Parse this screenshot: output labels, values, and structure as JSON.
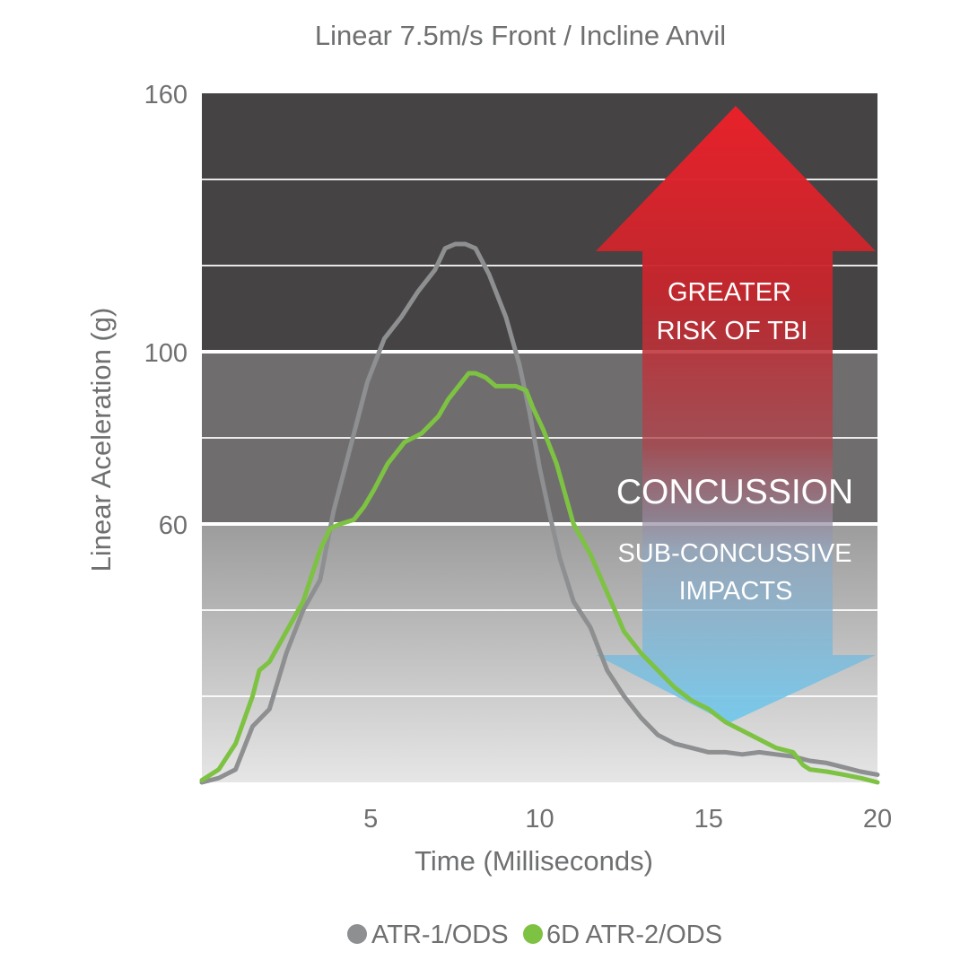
{
  "chart_data": {
    "type": "line",
    "title": "Linear 7.5m/s Front / Incline Anvil",
    "xlabel": "Time (Milliseconds)",
    "ylabel": "Linear Aceleration (g)",
    "xlim": [
      0,
      20
    ],
    "ylim": [
      0,
      160
    ],
    "x_ticks": [
      5,
      10,
      15,
      20
    ],
    "y_ticks": [
      60,
      100,
      160
    ],
    "grid_lines_y": [
      20,
      40,
      60,
      80,
      100,
      120,
      140
    ],
    "zones": [
      {
        "from": 100,
        "to": 160,
        "color": "#454344"
      },
      {
        "from": 60,
        "to": 100,
        "color": "#6f6d6e"
      },
      {
        "from": 0,
        "to": 60,
        "gradient": [
          "#9c9c9c",
          "#e6e6e6"
        ]
      }
    ],
    "annotations": {
      "risk_line1": "GREATER",
      "risk_line2": "RISK OF TBI",
      "concussion": "CONCUSSION",
      "sub_line1": "SUB-CONCUSSIVE",
      "sub_line2": "IMPACTS"
    },
    "legend_position": "bottom",
    "series": [
      {
        "name": "ATR-1/ODS",
        "color": "#8e8f91",
        "x": [
          0,
          0.5,
          1,
          1.5,
          2,
          2.5,
          3,
          3.5,
          3.9,
          4.4,
          4.9,
          5.4,
          5.9,
          6.4,
          6.9,
          7.2,
          7.5,
          7.8,
          8.1,
          8.5,
          9,
          9.4,
          9.7,
          10,
          10.3,
          10.6,
          11,
          11.5,
          12,
          12.5,
          13,
          13.5,
          14,
          14.5,
          15,
          15.5,
          16,
          16.5,
          17,
          17.5,
          18,
          18.5,
          19,
          19.5,
          20
        ],
        "y": [
          0,
          1,
          3,
          13,
          17,
          30,
          40,
          47,
          63,
          78,
          93,
          103,
          108,
          114,
          119,
          124,
          125,
          125,
          124,
          118,
          108,
          97,
          86,
          73,
          62,
          52,
          42,
          36,
          26,
          20,
          15,
          11,
          9,
          8,
          7,
          7,
          6.5,
          7,
          6.5,
          6,
          5,
          4.5,
          3.5,
          2.5,
          1.8
        ]
      },
      {
        "name": "6D ATR-2/ODS",
        "color": "#7dc242",
        "x": [
          0,
          0.5,
          1,
          1.5,
          1.7,
          2,
          2.5,
          3,
          3.5,
          3.8,
          4.1,
          4.5,
          4.8,
          5.1,
          5.5,
          6,
          6.5,
          7,
          7.3,
          7.6,
          7.9,
          8.1,
          8.4,
          8.7,
          9,
          9.3,
          9.6,
          9.8,
          10.1,
          10.5,
          11,
          11.5,
          12,
          12.5,
          13,
          13.5,
          14,
          14.5,
          15,
          15.5,
          16,
          16.5,
          17,
          17.5,
          17.8,
          18,
          18.5,
          19,
          19.5,
          20
        ],
        "y": [
          0.5,
          3,
          9,
          20,
          26,
          28,
          35,
          42,
          54,
          59,
          60,
          61,
          64,
          68,
          74,
          79,
          81,
          85,
          89,
          92,
          95,
          95,
          94,
          92,
          92,
          92,
          91,
          87,
          82,
          74,
          60,
          53,
          44,
          35,
          30,
          26,
          22,
          19,
          17,
          14,
          12,
          10,
          8,
          7,
          4,
          3,
          2.5,
          1.8,
          1,
          0
        ]
      }
    ]
  }
}
